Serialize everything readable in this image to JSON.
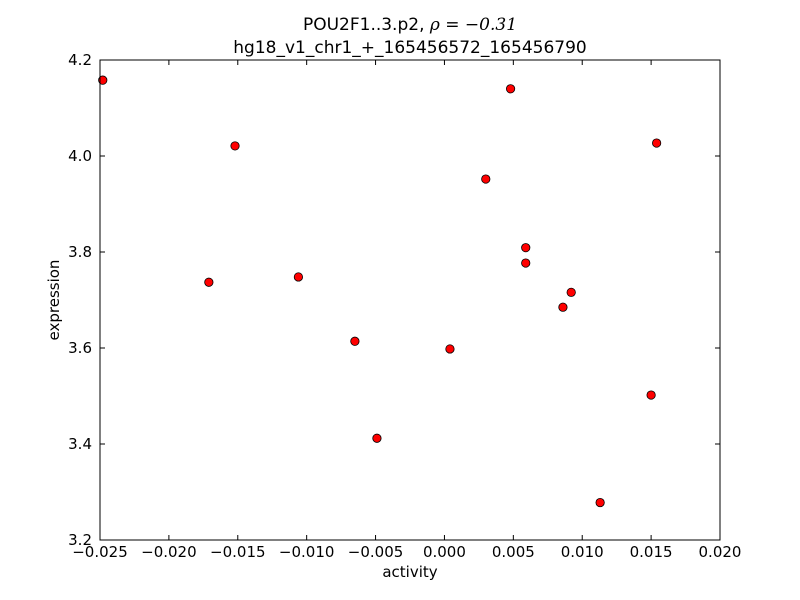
{
  "chart_data": {
    "type": "scatter",
    "title_lines": [
      "POU2F1..3.p2, ",
      "hg18_v1_chr1_+_165456572_165456790"
    ],
    "title_rho": "ρ = −0.31",
    "xlabel": "activity",
    "ylabel": "expression",
    "xlim": [
      -0.025,
      0.02
    ],
    "ylim": [
      3.2,
      4.2
    ],
    "x_ticks": [
      "−0.025",
      "−0.020",
      "−0.015",
      "−0.010",
      "−0.005",
      "0.000",
      "0.005",
      "0.010",
      "0.015",
      "0.020"
    ],
    "x_tick_values": [
      -0.025,
      -0.02,
      -0.015,
      -0.01,
      -0.005,
      0.0,
      0.005,
      0.01,
      0.015,
      0.02
    ],
    "y_ticks": [
      "3.2",
      "3.4",
      "3.6",
      "3.8",
      "4.0",
      "4.2"
    ],
    "y_tick_values": [
      3.2,
      3.4,
      3.6,
      3.8,
      4.0,
      4.2
    ],
    "grid": false,
    "marker_color": "#ff0000",
    "points": [
      {
        "x": -0.0248,
        "y": 4.158
      },
      {
        "x": -0.0152,
        "y": 4.021
      },
      {
        "x": -0.0171,
        "y": 3.737
      },
      {
        "x": -0.0106,
        "y": 3.748
      },
      {
        "x": -0.0065,
        "y": 3.614
      },
      {
        "x": -0.0049,
        "y": 3.412
      },
      {
        "x": 0.0004,
        "y": 3.598
      },
      {
        "x": 0.003,
        "y": 3.952
      },
      {
        "x": 0.0048,
        "y": 4.14
      },
      {
        "x": 0.0059,
        "y": 3.809
      },
      {
        "x": 0.0059,
        "y": 3.777
      },
      {
        "x": 0.0086,
        "y": 3.685
      },
      {
        "x": 0.0092,
        "y": 3.716
      },
      {
        "x": 0.0113,
        "y": 3.278
      },
      {
        "x": 0.015,
        "y": 3.502
      },
      {
        "x": 0.0154,
        "y": 4.027
      }
    ]
  }
}
